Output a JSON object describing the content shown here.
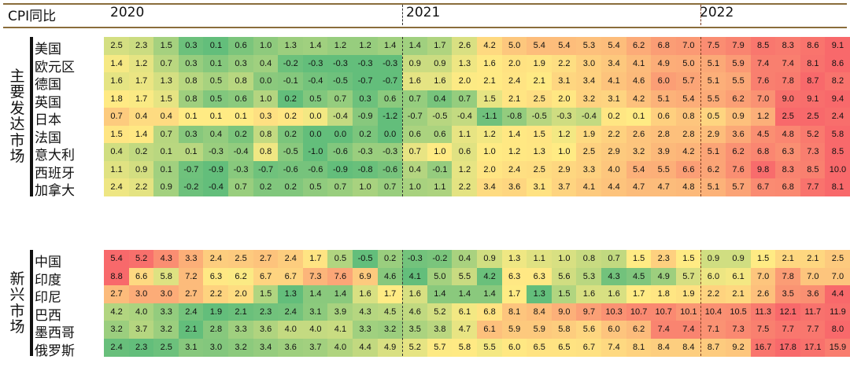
{
  "header": {
    "title": "CPI同比",
    "years": [
      "2020",
      "2021",
      "2022"
    ]
  },
  "groups": [
    {
      "name": "主要发达市场",
      "countries": [
        "美国",
        "欧元区",
        "德国",
        "英国",
        "日本",
        "法国",
        "意大利",
        "西班牙",
        "加拿大"
      ],
      "values": [
        [
          2.5,
          2.3,
          1.5,
          0.3,
          0.1,
          0.6,
          1.0,
          1.3,
          1.4,
          1.2,
          1.2,
          1.4,
          1.4,
          1.7,
          2.6,
          4.2,
          5.0,
          5.4,
          5.4,
          5.3,
          5.4,
          6.2,
          6.8,
          7.0,
          7.5,
          7.9,
          8.5,
          8.3,
          8.6,
          9.1
        ],
        [
          1.4,
          1.2,
          0.7,
          0.3,
          0.1,
          0.3,
          0.4,
          -0.2,
          -0.3,
          -0.3,
          -0.3,
          -0.3,
          0.9,
          0.9,
          1.3,
          1.6,
          2.0,
          1.9,
          2.2,
          3.0,
          3.4,
          4.1,
          4.9,
          5.0,
          5.1,
          5.9,
          7.4,
          7.4,
          8.1,
          8.6
        ],
        [
          1.6,
          1.7,
          1.3,
          0.8,
          0.5,
          0.8,
          0.0,
          -0.1,
          -0.4,
          -0.5,
          -0.7,
          -0.7,
          1.6,
          1.6,
          2.0,
          2.1,
          2.4,
          2.1,
          3.1,
          3.4,
          4.1,
          4.6,
          6.0,
          5.7,
          5.1,
          5.5,
          7.6,
          7.8,
          8.7,
          8.2
        ],
        [
          1.8,
          1.7,
          1.5,
          0.8,
          0.5,
          0.6,
          1.0,
          0.2,
          0.5,
          0.7,
          0.3,
          0.6,
          0.7,
          0.4,
          0.7,
          1.5,
          2.1,
          2.5,
          2.0,
          3.2,
          3.1,
          4.2,
          5.1,
          5.4,
          5.5,
          6.2,
          7.0,
          9.0,
          9.1,
          9.4
        ],
        [
          0.7,
          0.4,
          0.4,
          0.1,
          0.1,
          0.1,
          0.3,
          0.2,
          0.0,
          -0.4,
          -0.9,
          -1.2,
          -0.7,
          -0.5,
          -0.4,
          -1.1,
          -0.8,
          -0.5,
          -0.3,
          -0.4,
          0.2,
          0.1,
          0.6,
          0.8,
          0.5,
          0.9,
          1.2,
          2.5,
          2.5,
          2.4
        ],
        [
          1.5,
          1.4,
          0.7,
          0.3,
          0.4,
          0.2,
          0.8,
          0.2,
          0.0,
          0.0,
          0.2,
          0.0,
          0.6,
          0.6,
          1.1,
          1.2,
          1.4,
          1.5,
          1.2,
          1.9,
          2.2,
          2.6,
          2.8,
          2.8,
          2.9,
          3.6,
          4.5,
          4.8,
          5.2,
          5.8
        ],
        [
          0.4,
          0.2,
          0.1,
          0.1,
          -0.3,
          -0.4,
          0.8,
          -0.5,
          -1.0,
          -0.6,
          -0.3,
          -0.3,
          0.7,
          1.0,
          0.6,
          1.0,
          1.2,
          1.3,
          1.0,
          2.5,
          2.9,
          3.2,
          3.9,
          4.2,
          5.1,
          6.2,
          6.8,
          6.3,
          7.3,
          8.5
        ],
        [
          1.1,
          0.9,
          0.1,
          -0.7,
          -0.9,
          -0.3,
          -0.7,
          -0.6,
          -0.6,
          -0.9,
          -0.8,
          -0.6,
          0.4,
          -0.1,
          1.2,
          2.0,
          2.4,
          2.5,
          2.9,
          3.3,
          4.0,
          5.4,
          5.5,
          6.6,
          6.2,
          7.6,
          9.8,
          8.3,
          8.5,
          10.0
        ],
        [
          2.4,
          2.2,
          0.9,
          -0.2,
          -0.4,
          0.7,
          0.2,
          0.2,
          0.5,
          0.7,
          1.0,
          0.7,
          1.0,
          1.1,
          2.2,
          3.4,
          3.6,
          3.1,
          3.7,
          4.1,
          4.4,
          4.7,
          4.7,
          4.8,
          5.1,
          5.7,
          6.7,
          6.8,
          7.7,
          8.1
        ]
      ]
    },
    {
      "name": "新兴市场",
      "countries": [
        "中国",
        "印度",
        "印尼",
        "巴西",
        "墨西哥",
        "俄罗斯"
      ],
      "values": [
        [
          5.4,
          5.2,
          4.3,
          3.3,
          2.4,
          2.5,
          2.7,
          2.4,
          1.7,
          0.5,
          -0.5,
          0.2,
          -0.3,
          -0.2,
          0.4,
          0.9,
          1.3,
          1.1,
          1.0,
          0.8,
          0.7,
          1.5,
          2.3,
          1.5,
          0.9,
          0.9,
          1.5,
          2.1,
          2.1,
          2.5
        ],
        [
          8.8,
          6.6,
          5.8,
          7.2,
          6.3,
          6.2,
          6.7,
          6.7,
          7.3,
          7.6,
          6.9,
          4.6,
          4.1,
          5.0,
          5.5,
          4.2,
          6.3,
          6.3,
          5.6,
          5.3,
          4.3,
          4.5,
          4.9,
          5.7,
          6.0,
          6.1,
          7.0,
          7.8,
          7.0,
          7.0
        ],
        [
          2.7,
          3.0,
          3.0,
          2.7,
          2.2,
          2.0,
          1.5,
          1.3,
          1.4,
          1.4,
          1.6,
          1.7,
          1.6,
          1.4,
          1.4,
          1.4,
          1.7,
          1.3,
          1.5,
          1.6,
          1.6,
          1.7,
          1.8,
          1.9,
          2.2,
          2.1,
          2.6,
          3.5,
          3.6,
          4.4
        ],
        [
          4.2,
          4.0,
          3.3,
          2.4,
          1.9,
          2.1,
          2.3,
          2.4,
          3.1,
          3.9,
          4.3,
          4.5,
          4.6,
          5.2,
          6.1,
          6.8,
          8.1,
          8.4,
          9.0,
          9.7,
          10.3,
          10.7,
          10.7,
          10.1,
          10.4,
          10.5,
          11.3,
          12.1,
          11.7,
          11.9
        ],
        [
          3.2,
          3.7,
          3.2,
          2.1,
          2.8,
          3.3,
          3.6,
          4.0,
          4.0,
          4.1,
          3.3,
          3.2,
          3.5,
          3.8,
          4.7,
          6.1,
          5.9,
          5.9,
          5.8,
          5.6,
          6.0,
          6.2,
          7.4,
          7.4,
          7.1,
          7.3,
          7.5,
          7.7,
          7.7,
          8.0
        ],
        [
          2.4,
          2.3,
          2.5,
          3.1,
          3.0,
          3.2,
          3.4,
          3.6,
          3.7,
          4.0,
          4.4,
          4.9,
          5.2,
          5.7,
          5.8,
          5.5,
          6.0,
          6.5,
          6.5,
          6.7,
          7.4,
          8.1,
          8.4,
          8.4,
          8.7,
          9.2,
          16.7,
          17.8,
          17.1,
          15.9
        ]
      ]
    }
  ],
  "chart_data": {
    "type": "heatmap",
    "title": "CPI同比",
    "period_labels": [
      "2020",
      "2021",
      "2022"
    ],
    "months_per_period": [
      12,
      12,
      6
    ],
    "color_scale": {
      "low": "#63be7b",
      "mid": "#ffeb84",
      "high": "#f8696b"
    },
    "groups": [
      "主要发达市场",
      "新兴市场"
    ]
  }
}
